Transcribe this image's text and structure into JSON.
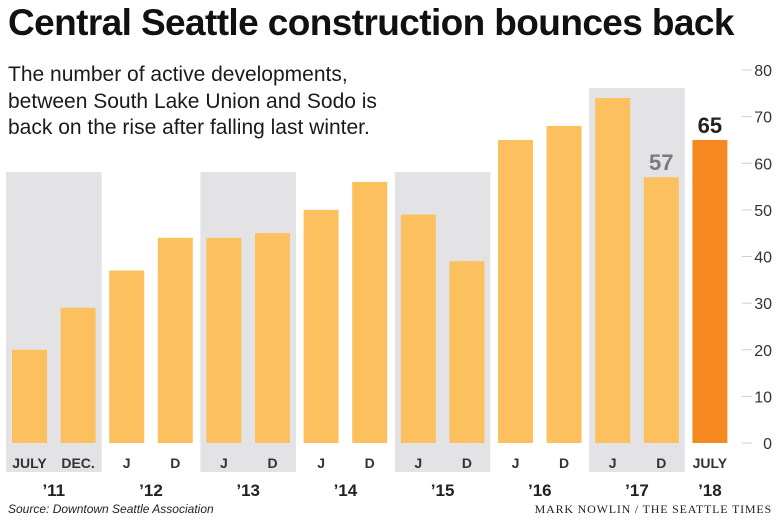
{
  "title": "Central Seattle construction bounces back",
  "subtitle_lines": [
    "The number of active developments,",
    "between South Lake Union and Sodo is",
    "back on the rise after falling last winter."
  ],
  "source": "Source: Downtown Seattle Association",
  "credit": "MARK NOWLIN / THE SEATTLE TIMES",
  "colors": {
    "bar": "#fcc15e",
    "highlight": "#f5881f",
    "band": "#e3e3e5",
    "axis_text": "#333333",
    "callout_gray": "#7a7a7a",
    "callout_dark": "#222222"
  },
  "chart_data": {
    "type": "bar",
    "title": "",
    "xlabel": "",
    "ylabel": "",
    "ylim": [
      0,
      80
    ],
    "y_ticks": [
      "0",
      "10",
      "20",
      "30",
      "40",
      "50",
      "60",
      "70",
      "80"
    ],
    "y_axis_position": "right",
    "grid": false,
    "categories": [
      "JULY",
      "DEC.",
      "J",
      "D",
      "J",
      "D",
      "J",
      "D",
      "J",
      "D",
      "J",
      "D",
      "J",
      "D",
      "JULY"
    ],
    "values": [
      20,
      29,
      37,
      44,
      44,
      45,
      50,
      56,
      49,
      39,
      65,
      68,
      74,
      57,
      65
    ],
    "highlighted_index": 14,
    "year_labels": [
      "’11",
      "’12",
      "’13",
      "’14",
      "’15",
      "’16",
      "’17",
      "’18"
    ],
    "shaded_years": [
      "’11",
      "’13",
      "’15",
      "’17"
    ],
    "annotations": [
      {
        "index": 13,
        "text": "57",
        "style": "gray"
      },
      {
        "index": 14,
        "text": "65",
        "style": "dark"
      }
    ]
  }
}
